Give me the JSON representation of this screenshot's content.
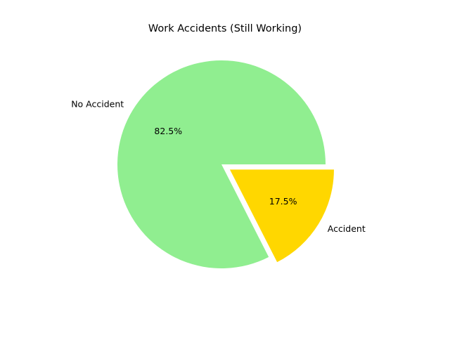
{
  "chart_data": {
    "type": "pie",
    "title": "Work Accidents (Still Working)",
    "slices": [
      {
        "label": "No Accident",
        "value": 82.5,
        "pct_label": "82.5%",
        "color": "#90EE90",
        "explode": false
      },
      {
        "label": "Accident",
        "value": 17.5,
        "pct_label": "17.5%",
        "color": "#FFD700",
        "explode": true
      }
    ],
    "start_angle_deg": 0,
    "direction": "counterclockwise"
  }
}
